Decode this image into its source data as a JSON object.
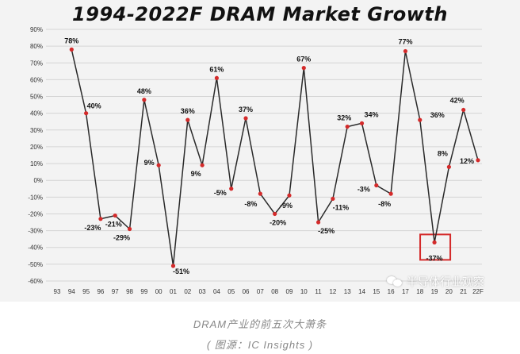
{
  "chart_data": {
    "type": "line",
    "title": "1994-2022F DRAM Market Growth",
    "x": [
      "93",
      "94",
      "95",
      "96",
      "97",
      "98",
      "99",
      "00",
      "01",
      "02",
      "03",
      "04",
      "05",
      "06",
      "07",
      "08",
      "09",
      "10",
      "11",
      "12",
      "13",
      "14",
      "15",
      "16",
      "17",
      "18",
      "19",
      "20",
      "21",
      "22F"
    ],
    "series": [
      {
        "values": [
          null,
          78,
          40,
          -23,
          -21,
          -29,
          48,
          9,
          -51,
          36,
          9,
          61,
          -5,
          37,
          -8,
          -20,
          -9,
          67,
          -25,
          -11,
          32,
          34,
          -3,
          -8,
          77,
          36,
          -37,
          8,
          42,
          12
        ],
        "labels": [
          "",
          "78%",
          "40%",
          "-23%",
          "-21%",
          "-29%",
          "48%",
          "9%",
          "-51%",
          "36%",
          "9%",
          "61%",
          "-5%",
          "37%",
          "-8%",
          "-20%",
          "-9%",
          "67%",
          "-25%",
          "-11%",
          "32%",
          "34%",
          "-3%",
          "-8%",
          "77%",
          "36%",
          "-37%",
          "8%",
          "42%",
          "12%"
        ]
      }
    ],
    "y_ticks": [
      "90%",
      "80%",
      "70%",
      "60%",
      "50%",
      "40%",
      "30%",
      "20%",
      "10%",
      "0%",
      "-10%",
      "-20%",
      "-30%",
      "-40%",
      "-50%",
      "-60%"
    ],
    "ylim": [
      -60,
      90
    ],
    "grid": true,
    "highlight_index": 26,
    "colors": {
      "line": "#2a2a2a",
      "marker": "#d42a2a",
      "highlight_box": "#d42a2a",
      "grid": "#d4d4d4"
    }
  },
  "watermark": {
    "text": "半导体行业观察",
    "icon": "wechat-icon"
  },
  "caption": {
    "line1": "DRAM产业的前五次大萧条",
    "line2": "( 图源：IC Insights )"
  }
}
